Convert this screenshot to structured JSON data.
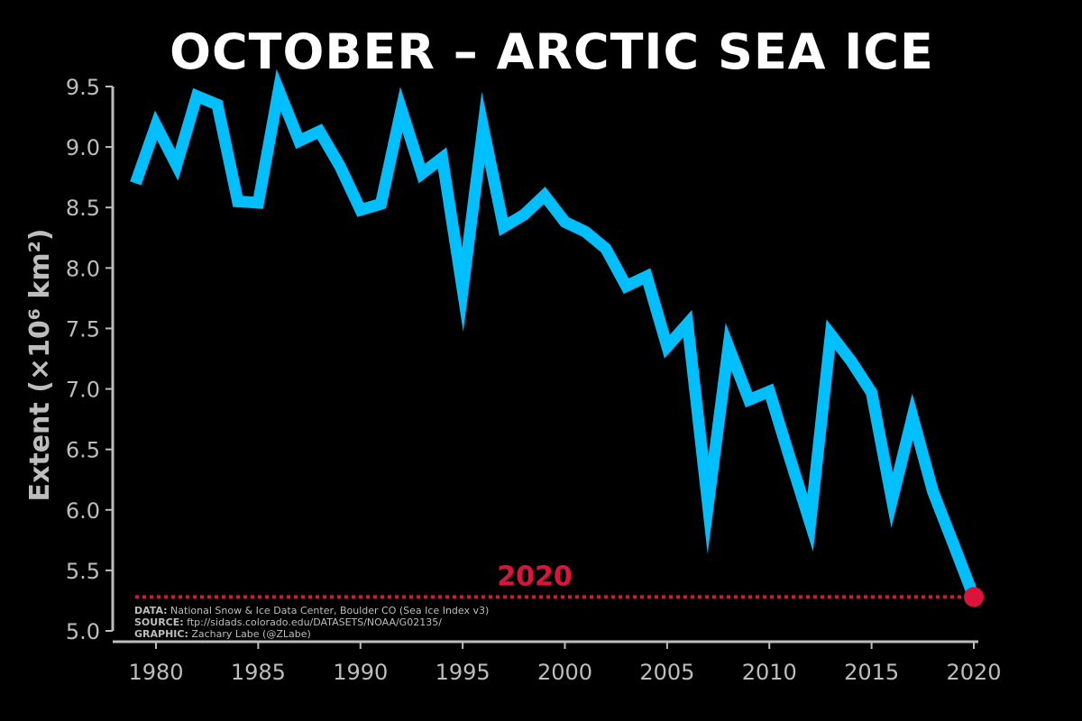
{
  "chart_data": {
    "type": "line",
    "title": "OCTOBER – ARCTIC SEA ICE",
    "ylabel": "Extent",
    "ylabel_unit": "(×10⁶ km²)",
    "xlim": [
      1979,
      2020
    ],
    "ylim": [
      5.0,
      9.5
    ],
    "xticks": [
      1980,
      1985,
      1990,
      1995,
      2000,
      2005,
      2010,
      2015,
      2020
    ],
    "yticks": [
      "5.0",
      "5.5",
      "6.0",
      "6.5",
      "7.0",
      "7.5",
      "8.0",
      "8.5",
      "9.0",
      "9.5"
    ],
    "grid": false,
    "series": [
      {
        "color": "#00bfff",
        "x": [
          1979,
          1980,
          1981,
          1982,
          1983,
          1984,
          1985,
          1986,
          1987,
          1988,
          1989,
          1990,
          1991,
          1992,
          1993,
          1994,
          1995,
          1996,
          1997,
          1998,
          1999,
          2000,
          2001,
          2002,
          2003,
          2004,
          2005,
          2006,
          2007,
          2008,
          2009,
          2010,
          2011,
          2012,
          2013,
          2014,
          2015,
          2016,
          2017,
          2018,
          2019,
          2020
        ],
        "values": [
          8.7,
          9.18,
          8.85,
          9.42,
          9.35,
          8.55,
          8.54,
          9.47,
          9.05,
          9.13,
          8.84,
          8.48,
          8.53,
          9.31,
          8.78,
          8.91,
          7.82,
          9.16,
          8.34,
          8.44,
          8.6,
          8.38,
          8.3,
          8.16,
          7.85,
          7.93,
          7.35,
          7.54,
          6.04,
          7.35,
          6.91,
          6.98,
          6.43,
          5.89,
          7.45,
          7.23,
          6.97,
          6.08,
          6.77,
          6.15,
          5.72,
          5.28
        ]
      }
    ],
    "highlight": {
      "year": 2020,
      "value": 5.28,
      "label": "2020",
      "color": "#dc143c"
    },
    "annotation": [
      {
        "label": "DATA:",
        "text": " National Snow & Ice Data Center, Boulder CO (Sea Ice Index v3)"
      },
      {
        "label": "SOURCE:",
        "text": " ftp://sidads.colorado.edu/DATASETS/NOAA/G02135/"
      },
      {
        "label": "GRAPHIC:",
        "text": " Zachary Labe (@ZLabe)"
      }
    ],
    "colors": {
      "background": "#000000",
      "axis": "#bdbdbd",
      "text": "#ffffff"
    }
  }
}
